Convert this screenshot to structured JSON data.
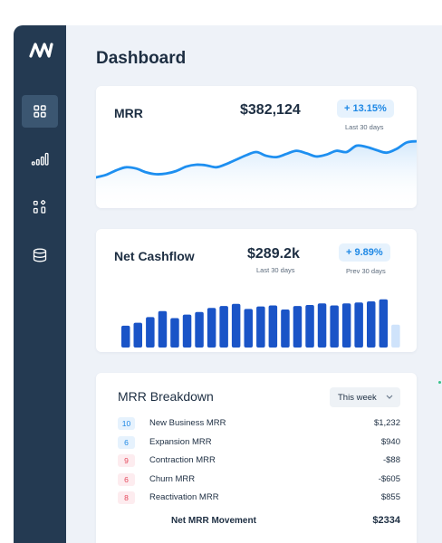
{
  "sidebar": {
    "items": [
      {
        "icon": "grid-icon",
        "active": true
      },
      {
        "icon": "bar-chart-icon",
        "active": false
      },
      {
        "icon": "shapes-icon",
        "active": false
      },
      {
        "icon": "database-icon",
        "active": false
      }
    ]
  },
  "page_title": "Dashboard",
  "mrr_card": {
    "title": "MRR",
    "value": "$382,124",
    "badge": "+ 13.15%",
    "badge_note": "Last 30 days",
    "line_values": [
      20,
      24,
      31,
      36,
      34,
      28,
      25,
      26,
      30,
      37,
      40,
      39,
      36,
      41,
      48,
      55,
      60,
      54,
      52,
      57,
      62,
      58,
      53,
      56,
      62,
      60,
      70,
      68,
      63,
      59,
      65,
      75,
      77
    ]
  },
  "cashflow_card": {
    "title": "Net Cashflow",
    "value": "$289.2k",
    "value_note": "Last 30 days",
    "badge": "+ 9.89%",
    "badge_note": "Prev 30 days",
    "bars": [
      43,
      49,
      60,
      72,
      58,
      65,
      70,
      78,
      82,
      86,
      76,
      81,
      83,
      75,
      82,
      84,
      87,
      83,
      87,
      89,
      91,
      95
    ],
    "forecast_bar": 45
  },
  "breakdown_card": {
    "title": "MRR Breakdown",
    "period": "This week",
    "rows": [
      {
        "count": "10",
        "label": "New Business MRR",
        "value": "$1,232",
        "tone": "blue"
      },
      {
        "count": "6",
        "label": "Expansion MRR",
        "value": "$940",
        "tone": "blue"
      },
      {
        "count": "9",
        "label": "Contraction MRR",
        "value": "-$88",
        "tone": "red"
      },
      {
        "count": "6",
        "label": "Churn MRR",
        "value": "-$605",
        "tone": "red"
      },
      {
        "count": "8",
        "label": "Reactivation MRR",
        "value": "$855",
        "tone": "red"
      }
    ],
    "total_label": "Net MRR Movement",
    "total_value": "$2334"
  },
  "colors": {
    "sidebar": "#243a52",
    "accent": "#1e88e5",
    "bar": "#1a54c7",
    "negative": "#e5485b"
  }
}
